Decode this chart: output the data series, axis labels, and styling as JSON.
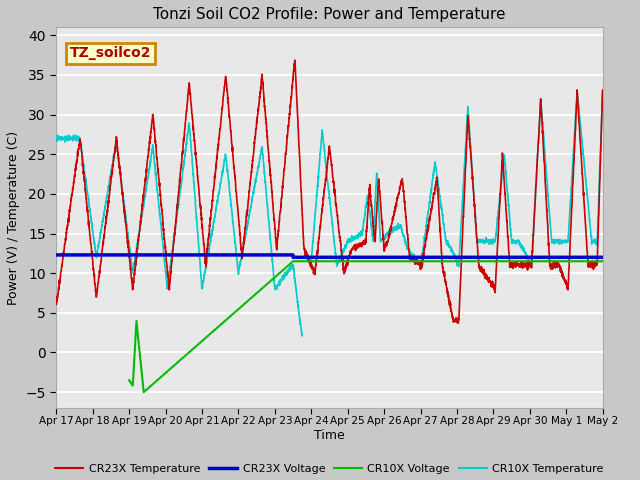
{
  "title": "Tonzi Soil CO2 Profile: Power and Temperature",
  "xlabel": "Time",
  "ylabel": "Power (V) / Temperature (C)",
  "ylim": [
    -7,
    41
  ],
  "xlim": [
    0,
    15
  ],
  "annotation": "TZ_soilco2",
  "tick_labels": [
    "Apr 17",
    "Apr 18",
    "Apr 19",
    "Apr 20",
    "Apr 21",
    "Apr 22",
    "Apr 23",
    "Apr 24",
    "Apr 25",
    "Apr 26",
    "Apr 27",
    "Apr 28",
    "Apr 29",
    "Apr 30",
    "May 1",
    "May 2"
  ],
  "cr23x_temp_color": "#cc0000",
  "cr23x_volt_color": "#0000cc",
  "cr10x_volt_color": "#00bb00",
  "cr10x_temp_color": "#00cccc",
  "legend_items": [
    "CR23X Temperature",
    "CR23X Voltage",
    "CR10X Voltage",
    "CR10X Temperature"
  ],
  "yticks": [
    -5,
    0,
    5,
    10,
    15,
    20,
    25,
    30,
    35,
    40
  ],
  "figsize": [
    6.4,
    4.8
  ],
  "dpi": 100
}
